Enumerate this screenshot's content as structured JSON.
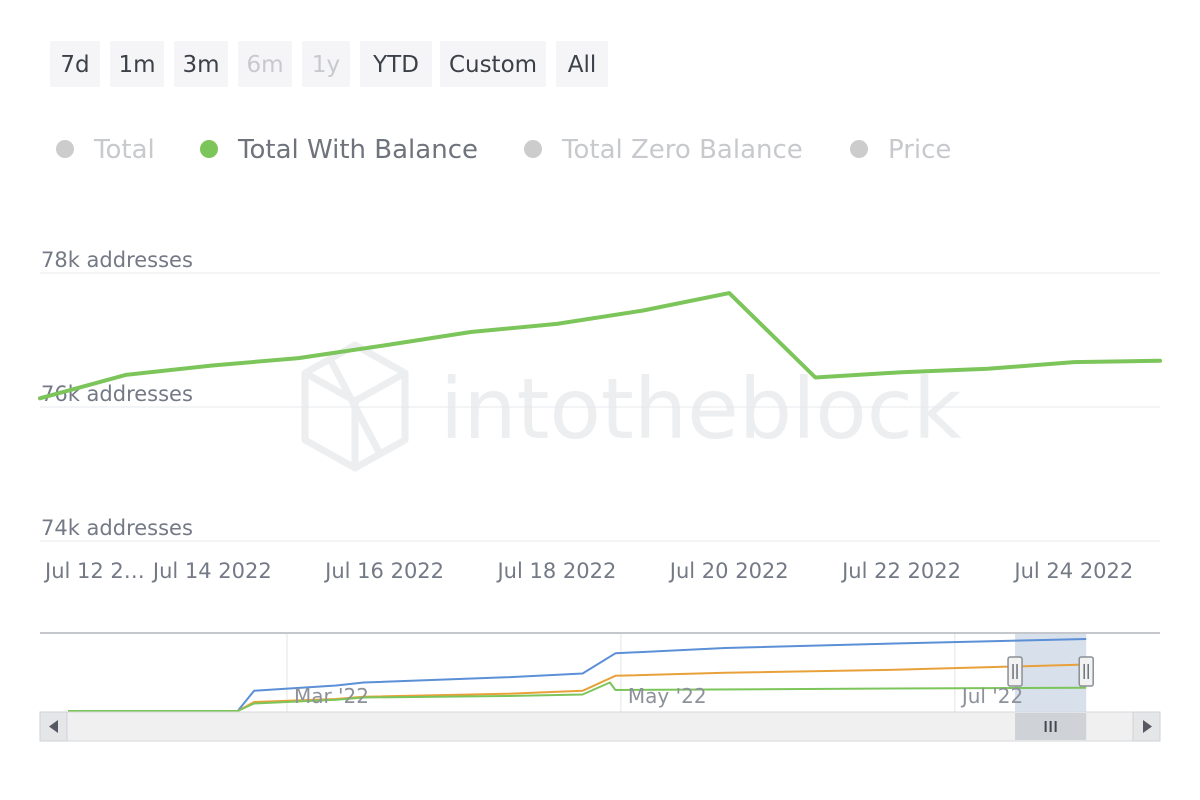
{
  "range_selector": {
    "buttons": [
      {
        "label": "7d",
        "enabled": true
      },
      {
        "label": "1m",
        "enabled": true
      },
      {
        "label": "3m",
        "enabled": true
      },
      {
        "label": "6m",
        "enabled": false
      },
      {
        "label": "1y",
        "enabled": false
      },
      {
        "label": "YTD",
        "enabled": true
      },
      {
        "label": "Custom",
        "enabled": true
      },
      {
        "label": "All",
        "enabled": true
      }
    ]
  },
  "legend": {
    "items": [
      {
        "label": "Total",
        "active": false,
        "color": "#cccccc"
      },
      {
        "label": "Total With Balance",
        "active": true,
        "color": "#7cc55a"
      },
      {
        "label": "Total Zero Balance",
        "active": false,
        "color": "#cccccc"
      },
      {
        "label": "Price",
        "active": false,
        "color": "#cccccc"
      }
    ],
    "active_text_color": "#6f747c",
    "inactive_text_color": "#c7c9cd"
  },
  "watermark": "intotheblock",
  "chart_data": {
    "type": "line",
    "x": [
      "2022-07-12",
      "2022-07-13",
      "2022-07-14",
      "2022-07-15",
      "2022-07-16",
      "2022-07-17",
      "2022-07-18",
      "2022-07-19",
      "2022-07-20",
      "2022-07-21",
      "2022-07-22",
      "2022-07-23",
      "2022-07-24",
      "2022-07-25"
    ],
    "series": [
      {
        "name": "Total With Balance",
        "color": "#7cc55a",
        "values": [
          76130,
          76480,
          76620,
          76730,
          76920,
          77120,
          77240,
          77440,
          77700,
          76440,
          76520,
          76570,
          76670,
          76690
        ]
      }
    ],
    "ylim": [
      74000,
      78000
    ],
    "y_ticks": [
      {
        "value": 74000,
        "label": "74k addresses"
      },
      {
        "value": 76000,
        "label": "76k addresses"
      },
      {
        "value": 78000,
        "label": "78k addresses"
      }
    ],
    "x_ticks": [
      {
        "date": "2022-07-12",
        "label": "Jul 12 2…"
      },
      {
        "date": "2022-07-14",
        "label": "Jul 14 2022"
      },
      {
        "date": "2022-07-16",
        "label": "Jul 16 2022"
      },
      {
        "date": "2022-07-18",
        "label": "Jul 18 2022"
      },
      {
        "date": "2022-07-20",
        "label": "Jul 20 2022"
      },
      {
        "date": "2022-07-22",
        "label": "Jul 22 2022"
      },
      {
        "date": "2022-07-24",
        "label": "Jul 24 2022"
      }
    ],
    "grid": true,
    "navigator": {
      "labels": [
        {
          "date": "2022-03-01",
          "label": "Mar '22"
        },
        {
          "date": "2022-05-01",
          "label": "May '22"
        },
        {
          "date": "2022-07-01",
          "label": "Jul '22"
        }
      ],
      "x_range": [
        "2022-01-20",
        "2022-08-02"
      ],
      "selected_range": [
        "2022-07-12",
        "2022-07-25"
      ],
      "series": [
        {
          "color": "#5b8fd6",
          "relative_values": [
            [
              "2022-01-20",
              0
            ],
            [
              "2022-02-20",
              0
            ],
            [
              "2022-02-23",
              0.27
            ],
            [
              "2022-03-10",
              0.34
            ],
            [
              "2022-03-15",
              0.38
            ],
            [
              "2022-04-10",
              0.45
            ],
            [
              "2022-04-24",
              0.5
            ],
            [
              "2022-04-30",
              0.77
            ],
            [
              "2022-05-20",
              0.84
            ],
            [
              "2022-06-20",
              0.9
            ],
            [
              "2022-07-25",
              0.96
            ]
          ]
        },
        {
          "color": "#e8a13a",
          "relative_values": [
            [
              "2022-01-20",
              0
            ],
            [
              "2022-02-20",
              0
            ],
            [
              "2022-02-23",
              0.12
            ],
            [
              "2022-03-10",
              0.16
            ],
            [
              "2022-03-15",
              0.19
            ],
            [
              "2022-04-10",
              0.23
            ],
            [
              "2022-04-24",
              0.27
            ],
            [
              "2022-04-30",
              0.47
            ],
            [
              "2022-05-20",
              0.51
            ],
            [
              "2022-06-20",
              0.55
            ],
            [
              "2022-07-25",
              0.62
            ]
          ]
        },
        {
          "color": "#7cc55a",
          "relative_values": [
            [
              "2022-01-20",
              0
            ],
            [
              "2022-02-20",
              0
            ],
            [
              "2022-02-23",
              0.1
            ],
            [
              "2022-03-10",
              0.15
            ],
            [
              "2022-03-15",
              0.18
            ],
            [
              "2022-04-10",
              0.2
            ],
            [
              "2022-04-24",
              0.22
            ],
            [
              "2022-04-29",
              0.38
            ],
            [
              "2022-04-30",
              0.28
            ],
            [
              "2022-06-20",
              0.3
            ],
            [
              "2022-07-25",
              0.31
            ]
          ]
        }
      ]
    }
  }
}
